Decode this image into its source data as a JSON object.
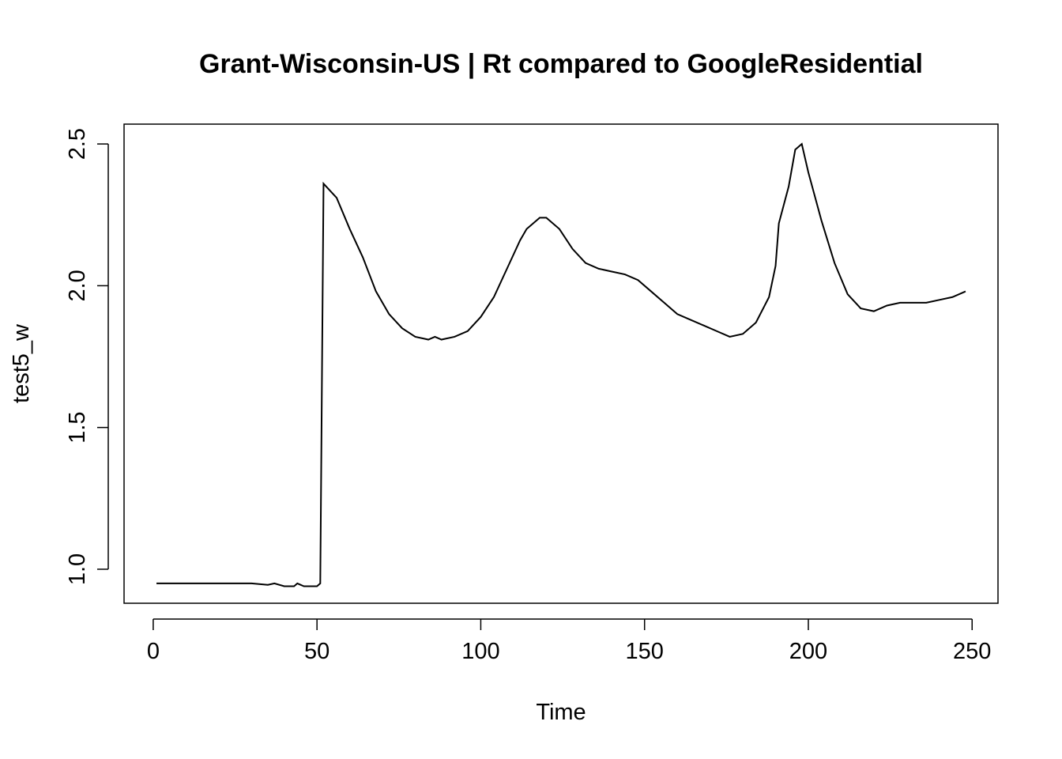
{
  "chart_data": {
    "type": "line",
    "title": "Grant-Wisconsin-US | Rt compared to GoogleResidential",
    "x_label": "Time",
    "y_label": "test5_w",
    "series": [
      {
        "name": "test5_w",
        "color": "#000000",
        "x": [
          1,
          5,
          10,
          20,
          30,
          35,
          37,
          40,
          43,
          44,
          46,
          50,
          51,
          52,
          56,
          60,
          64,
          68,
          72,
          76,
          80,
          84,
          86,
          88,
          92,
          96,
          100,
          104,
          108,
          112,
          114,
          118,
          120,
          124,
          128,
          132,
          136,
          140,
          144,
          148,
          152,
          156,
          160,
          164,
          168,
          172,
          176,
          180,
          184,
          188,
          190,
          191,
          194,
          196,
          198,
          200,
          204,
          208,
          212,
          216,
          220,
          224,
          228,
          232,
          236,
          240,
          244,
          248
        ],
        "values": [
          0.95,
          0.95,
          0.95,
          0.95,
          0.95,
          0.945,
          0.95,
          0.94,
          0.94,
          0.95,
          0.94,
          0.94,
          0.95,
          2.36,
          2.31,
          2.2,
          2.1,
          1.98,
          1.9,
          1.85,
          1.82,
          1.81,
          1.82,
          1.81,
          1.82,
          1.84,
          1.89,
          1.96,
          2.06,
          2.16,
          2.2,
          2.24,
          2.24,
          2.2,
          2.13,
          2.08,
          2.06,
          2.05,
          2.04,
          2.02,
          1.98,
          1.94,
          1.9,
          1.88,
          1.86,
          1.84,
          1.82,
          1.83,
          1.87,
          1.96,
          2.07,
          2.22,
          2.35,
          2.48,
          2.5,
          2.4,
          2.23,
          2.08,
          1.97,
          1.92,
          1.91,
          1.93,
          1.94,
          1.94,
          1.94,
          1.95,
          1.96,
          1.98
        ]
      }
    ],
    "xlim": [
      -8.9,
      257.9
    ],
    "xticks": [
      0,
      50,
      100,
      150,
      200,
      250
    ],
    "ylim": [
      0.88,
      2.57
    ],
    "yticks": [
      {
        "value": 1,
        "label": "1.0"
      },
      1.5,
      {
        "value": 2,
        "label": "2.0"
      },
      2.5
    ]
  }
}
